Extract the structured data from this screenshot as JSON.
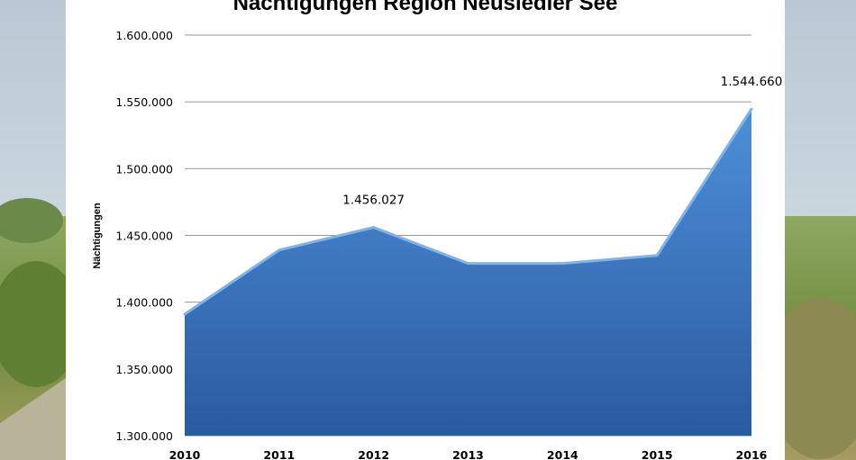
{
  "chart_data": {
    "type": "area",
    "title": "Nächtigungen Region Neusiedler See",
    "ylabel": "Nächtigungen",
    "xlabel": "",
    "categories": [
      "2010",
      "2011",
      "2012",
      "2013",
      "2014",
      "2015",
      "2016"
    ],
    "values": [
      1391000,
      1439000,
      1456027,
      1429000,
      1429000,
      1435000,
      1544660
    ],
    "ylim": [
      1300000,
      1600000
    ],
    "yticks": [
      1300000,
      1350000,
      1400000,
      1450000,
      1500000,
      1550000,
      1600000
    ],
    "ytick_labels": [
      "1.300.000",
      "1.350.000",
      "1.400.000",
      "1.450.000",
      "1.500.000",
      "1.550.000",
      "1.600.000"
    ],
    "data_labels": [
      {
        "category": "2012",
        "text": "1.456.027"
      },
      {
        "category": "2016",
        "text": "1.544.660"
      }
    ],
    "grid": true,
    "colors": {
      "fill_top": "#4e8fd8",
      "fill_bottom": "#2a5aa0",
      "line": "#7fb3ec",
      "grid": "#9a9a9a"
    }
  }
}
